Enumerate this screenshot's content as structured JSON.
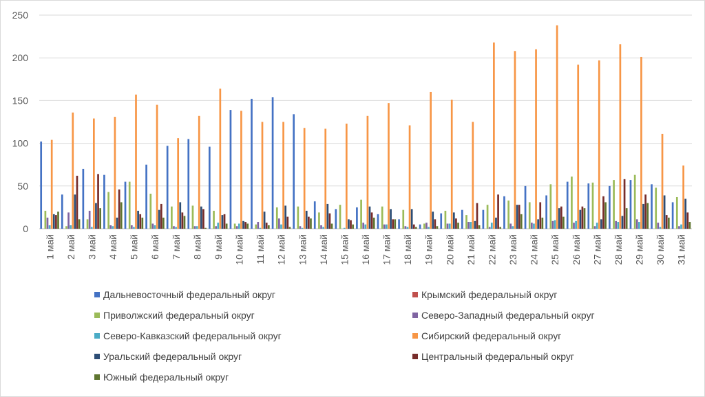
{
  "chart_data": {
    "type": "bar",
    "title": "",
    "xlabel": "",
    "ylabel": "",
    "ylim": [
      0,
      250
    ],
    "yticks": [
      0,
      50,
      100,
      150,
      200,
      250
    ],
    "grid": "horizontal",
    "legend_position": "bottom",
    "categories": [
      "1 май",
      "2 май",
      "3 май",
      "4 май",
      "5 май",
      "6 май",
      "7 май",
      "8 май",
      "9 май",
      "10 май",
      "11 май",
      "12 май",
      "13 май",
      "14 май",
      "15 май",
      "16 май",
      "17 май",
      "18 май",
      "19 май",
      "20 май",
      "21 май",
      "22 май",
      "23 май",
      "24 май",
      "25 май",
      "26 май",
      "27 май",
      "28 май",
      "29 май",
      "30 май",
      "31 май"
    ],
    "series": [
      {
        "name": "Дальневосточный федеральный округ",
        "color": "#4472C4",
        "values": [
          102,
          40,
          70,
          63,
          55,
          75,
          97,
          105,
          96,
          139,
          152,
          154,
          134,
          32,
          23,
          25,
          17,
          11,
          5,
          18,
          22,
          22,
          38,
          50,
          39,
          55,
          53,
          50,
          57,
          52,
          31
        ]
      },
      {
        "name": "Крымский федеральный округ",
        "color": "#C0504D",
        "values": [
          0,
          0,
          0,
          0,
          0,
          0,
          0,
          0,
          0,
          0,
          0,
          0,
          0,
          0,
          0,
          0,
          0,
          0,
          0,
          0,
          0,
          0,
          0,
          0,
          0,
          0,
          0,
          0,
          0,
          0,
          0
        ]
      },
      {
        "name": "Приволжский федеральный округ",
        "color": "#9BBB59",
        "values": [
          21,
          3,
          11,
          43,
          55,
          41,
          26,
          27,
          21,
          6,
          5,
          25,
          26,
          19,
          28,
          34,
          26,
          22,
          6,
          21,
          16,
          28,
          33,
          31,
          52,
          61,
          54,
          57,
          63,
          48,
          37
        ]
      },
      {
        "name": "Северо-Западный федеральный округ",
        "color": "#8064A2",
        "values": [
          13,
          19,
          21,
          4,
          4,
          6,
          3,
          3,
          3,
          3,
          8,
          12,
          3,
          4,
          0,
          7,
          5,
          3,
          7,
          6,
          8,
          2,
          6,
          7,
          9,
          7,
          3,
          9,
          11,
          7,
          3
        ]
      },
      {
        "name": "Северо-Кавказский федеральный округ",
        "color": "#4BACC6",
        "values": [
          4,
          4,
          2,
          3,
          2,
          4,
          2,
          3,
          7,
          6,
          1,
          5,
          1,
          2,
          1,
          5,
          5,
          2,
          2,
          6,
          8,
          7,
          3,
          6,
          10,
          9,
          7,
          8,
          8,
          2,
          5
        ]
      },
      {
        "name": "Сибирский федеральный округ",
        "color": "#F79646",
        "values": [
          104,
          136,
          129,
          131,
          157,
          145,
          106,
          132,
          164,
          138,
          125,
          125,
          118,
          117,
          123,
          132,
          147,
          121,
          160,
          151,
          125,
          218,
          208,
          210,
          238,
          192,
          197,
          216,
          201,
          111,
          74
        ]
      },
      {
        "name": "Уральский федеральный округ",
        "color": "#2C4D75",
        "values": [
          17,
          40,
          30,
          13,
          21,
          22,
          31,
          26,
          16,
          9,
          20,
          27,
          21,
          29,
          11,
          26,
          23,
          23,
          20,
          19,
          9,
          13,
          28,
          11,
          24,
          22,
          11,
          15,
          29,
          39,
          35
        ]
      },
      {
        "name": "Центральный федеральный округ",
        "color": "#772C2A",
        "values": [
          16,
          62,
          64,
          46,
          17,
          29,
          19,
          23,
          17,
          8,
          7,
          14,
          14,
          18,
          10,
          19,
          11,
          5,
          11,
          12,
          30,
          40,
          28,
          31,
          26,
          26,
          38,
          58,
          40,
          16,
          19
        ]
      },
      {
        "name": "Южный федеральный округ",
        "color": "#5F7530",
        "values": [
          20,
          11,
          24,
          31,
          13,
          13,
          15,
          1,
          6,
          6,
          4,
          2,
          12,
          6,
          5,
          13,
          11,
          2,
          3,
          7,
          4,
          2,
          17,
          13,
          14,
          24,
          31,
          24,
          30,
          13,
          8
        ]
      }
    ]
  }
}
